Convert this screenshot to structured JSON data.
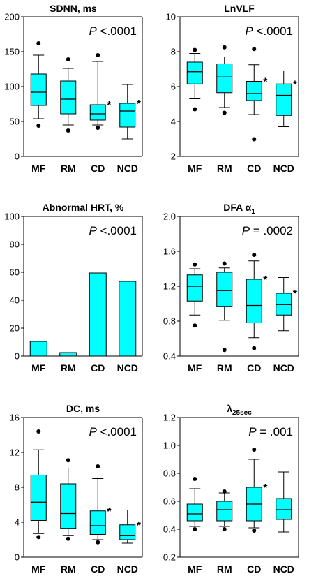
{
  "chart_data": [
    {
      "type": "box",
      "title": "SDNN, ms",
      "p_value": {
        "prefix": "P",
        "text": " <.0001"
      },
      "ylim": [
        0,
        200
      ],
      "yticks": [
        "0",
        "50",
        "100",
        "150",
        "200"
      ],
      "categories": [
        "MF",
        "RM",
        "CD",
        "NCD"
      ],
      "boxes": [
        {
          "whisker_low": 54,
          "q1": 73,
          "median": 92,
          "q3": 118,
          "whisker_high": 145,
          "outliers": [
            44,
            162
          ],
          "significant": false
        },
        {
          "whisker_low": 45,
          "q1": 61,
          "median": 82,
          "q3": 108,
          "whisker_high": 126,
          "outliers": [
            37,
            139
          ],
          "significant": false
        },
        {
          "whisker_low": 45,
          "q1": 52,
          "median": 61,
          "q3": 74,
          "whisker_high": 136,
          "outliers": [
            41,
            145
          ],
          "significant": true
        },
        {
          "whisker_low": 25,
          "q1": 42,
          "median": 65,
          "q3": 76,
          "whisker_high": 103,
          "outliers": [],
          "significant": true
        }
      ]
    },
    {
      "type": "box",
      "title": "LnVLF",
      "p_value": {
        "prefix": "P",
        "text": " <.0001"
      },
      "ylim": [
        2,
        10
      ],
      "yticks": [
        "2",
        "4",
        "6",
        "8",
        "10"
      ],
      "categories": [
        "MF",
        "RM",
        "CD",
        "NCD"
      ],
      "boxes": [
        {
          "whisker_low": 5.3,
          "q1": 6.15,
          "median": 6.85,
          "q3": 7.4,
          "whisker_high": 7.9,
          "outliers": [
            4.7,
            8.1
          ],
          "significant": false
        },
        {
          "whisker_low": 4.8,
          "q1": 5.65,
          "median": 6.55,
          "q3": 7.3,
          "whisker_high": 7.7,
          "outliers": [
            4.5,
            8.25
          ],
          "significant": false
        },
        {
          "whisker_low": 4.4,
          "q1": 5.2,
          "median": 5.6,
          "q3": 6.3,
          "whisker_high": 7.25,
          "outliers": [
            2.98,
            8.15
          ],
          "significant": true
        },
        {
          "whisker_low": 3.7,
          "q1": 4.35,
          "median": 5.5,
          "q3": 6.15,
          "whisker_high": 6.9,
          "outliers": [],
          "significant": true
        }
      ]
    },
    {
      "type": "bar",
      "title": "Abnormal HRT, %",
      "p_value": {
        "prefix": "P",
        "text": " <.0001"
      },
      "ylim": [
        0,
        100
      ],
      "yticks": [
        "0",
        "20",
        "40",
        "60",
        "80",
        "100"
      ],
      "categories": [
        "MF",
        "RM",
        "CD",
        "NCD"
      ],
      "values": [
        10.5,
        2.5,
        59.5,
        53.5
      ]
    },
    {
      "type": "box",
      "title": "DFA α",
      "title_sub": "1",
      "p_value": {
        "prefix": "P",
        "text": " = .0002"
      },
      "ylim": [
        0.4,
        2.0
      ],
      "yticks": [
        "0.4",
        "0.8",
        "1.2",
        "1.6",
        "2.0"
      ],
      "categories": [
        "MF",
        "RM",
        "CD",
        "NCD"
      ],
      "boxes": [
        {
          "whisker_low": 0.87,
          "q1": 1.03,
          "median": 1.2,
          "q3": 1.33,
          "whisker_high": 1.4,
          "outliers": [
            0.75,
            1.45
          ],
          "significant": false
        },
        {
          "whisker_low": 0.81,
          "q1": 0.97,
          "median": 1.15,
          "q3": 1.36,
          "whisker_high": 1.41,
          "outliers": [
            0.47,
            1.46
          ],
          "significant": false
        },
        {
          "whisker_low": 0.61,
          "q1": 0.78,
          "median": 0.98,
          "q3": 1.28,
          "whisker_high": 1.49,
          "outliers": [
            0.49,
            1.56
          ],
          "significant": true
        },
        {
          "whisker_low": 0.69,
          "q1": 0.87,
          "median": 0.99,
          "q3": 1.12,
          "whisker_high": 1.3,
          "outliers": [],
          "significant": true
        }
      ]
    },
    {
      "type": "box",
      "title": "DC, ms",
      "p_value": {
        "prefix": "P",
        "text": " <.0001"
      },
      "ylim": [
        0,
        16
      ],
      "yticks": [
        "0",
        "4",
        "8",
        "12",
        "16"
      ],
      "categories": [
        "MF",
        "RM",
        "CD",
        "NCD"
      ],
      "boxes": [
        {
          "whisker_low": 2.7,
          "q1": 4.2,
          "median": 6.3,
          "q3": 9.4,
          "whisker_high": 12.3,
          "outliers": [
            2.3,
            14.4
          ],
          "significant": false
        },
        {
          "whisker_low": 2.5,
          "q1": 3.3,
          "median": 5.0,
          "q3": 8.4,
          "whisker_high": 10.2,
          "outliers": [
            2.1,
            11.1
          ],
          "significant": false
        },
        {
          "whisker_low": 2.0,
          "q1": 2.6,
          "median": 3.6,
          "q3": 5.3,
          "whisker_high": 9.0,
          "outliers": [
            1.7,
            10.4
          ],
          "significant": true
        },
        {
          "whisker_low": 1.6,
          "q1": 2.0,
          "median": 2.5,
          "q3": 3.7,
          "whisker_high": 5.4,
          "outliers": [],
          "significant": true
        }
      ]
    },
    {
      "type": "box",
      "title": "λ",
      "title_sub": "25sec",
      "p_value": {
        "prefix": "P",
        "text": " = .001"
      },
      "ylim": [
        0.2,
        1.2
      ],
      "yticks": [
        "0.2",
        "0.4",
        "0.6",
        "0.8",
        "1.0",
        "1.2"
      ],
      "categories": [
        "MF",
        "RM",
        "CD",
        "NCD"
      ],
      "boxes": [
        {
          "whisker_low": 0.42,
          "q1": 0.46,
          "median": 0.51,
          "q3": 0.58,
          "whisker_high": 0.69,
          "outliers": [
            0.4,
            0.76
          ],
          "significant": false
        },
        {
          "whisker_low": 0.42,
          "q1": 0.46,
          "median": 0.54,
          "q3": 0.6,
          "whisker_high": 0.66,
          "outliers": [
            0.4,
            0.67
          ],
          "significant": false
        },
        {
          "whisker_low": 0.41,
          "q1": 0.46,
          "median": 0.58,
          "q3": 0.7,
          "whisker_high": 0.9,
          "outliers": [
            0.39,
            0.97
          ],
          "significant": true
        },
        {
          "whisker_low": 0.38,
          "q1": 0.47,
          "median": 0.54,
          "q3": 0.62,
          "whisker_high": 0.81,
          "outliers": [],
          "significant": false
        }
      ]
    }
  ],
  "significance_marker": "*",
  "colors": {
    "fill": "#00ffff",
    "stroke": "#000000"
  }
}
